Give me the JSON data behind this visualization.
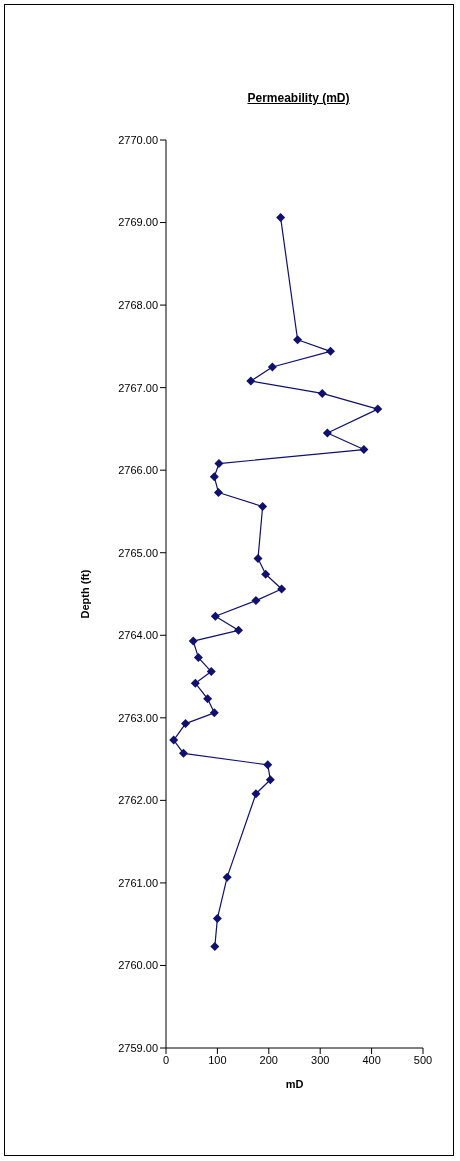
{
  "chart_data": {
    "type": "line",
    "title": "Permeability (mD)",
    "xlabel": "mD",
    "ylabel": "Depth (ft)",
    "x": [
      223,
      256,
      320,
      207,
      165,
      304,
      412,
      314,
      385,
      103,
      94,
      102,
      188,
      179,
      194,
      225,
      175,
      96,
      141,
      53,
      63,
      88,
      57,
      81,
      94,
      38,
      15,
      34,
      198,
      203,
      175,
      119,
      100,
      95
    ],
    "values": [
      2769.06,
      2767.58,
      2767.44,
      2767.25,
      2767.08,
      2766.93,
      2766.74,
      2766.45,
      2766.25,
      2766.08,
      2765.92,
      2765.73,
      2765.56,
      2764.93,
      2764.74,
      2764.56,
      2764.42,
      2764.23,
      2764.06,
      2763.93,
      2763.73,
      2763.56,
      2763.42,
      2763.23,
      2763.06,
      2762.93,
      2762.73,
      2762.57,
      2762.43,
      2762.25,
      2762.08,
      2761.07,
      2760.57,
      2760.23
    ],
    "color": "#10106e",
    "marker": "diamond",
    "line_style": "solid",
    "xlim": [
      0,
      500
    ],
    "xticks": [
      0,
      100,
      200,
      300,
      400,
      500
    ],
    "ylim": [
      2759,
      2770
    ],
    "yticks": [
      {
        "value": 2759,
        "label": "2759.00"
      },
      {
        "value": 2760,
        "label": "2760.00"
      },
      {
        "value": 2761,
        "label": "2761.00"
      },
      {
        "value": 2762,
        "label": "2762.00"
      },
      {
        "value": 2763,
        "label": "2763.00"
      },
      {
        "value": 2764,
        "label": "2764.00"
      },
      {
        "value": 2765,
        "label": "2765.00"
      },
      {
        "value": 2766,
        "label": "2766.00"
      },
      {
        "value": 2767,
        "label": "2767.00"
      },
      {
        "value": 2768,
        "label": "2768.00"
      },
      {
        "value": 2769,
        "label": "2769.00"
      },
      {
        "value": 2770,
        "label": "2770.00"
      }
    ]
  }
}
